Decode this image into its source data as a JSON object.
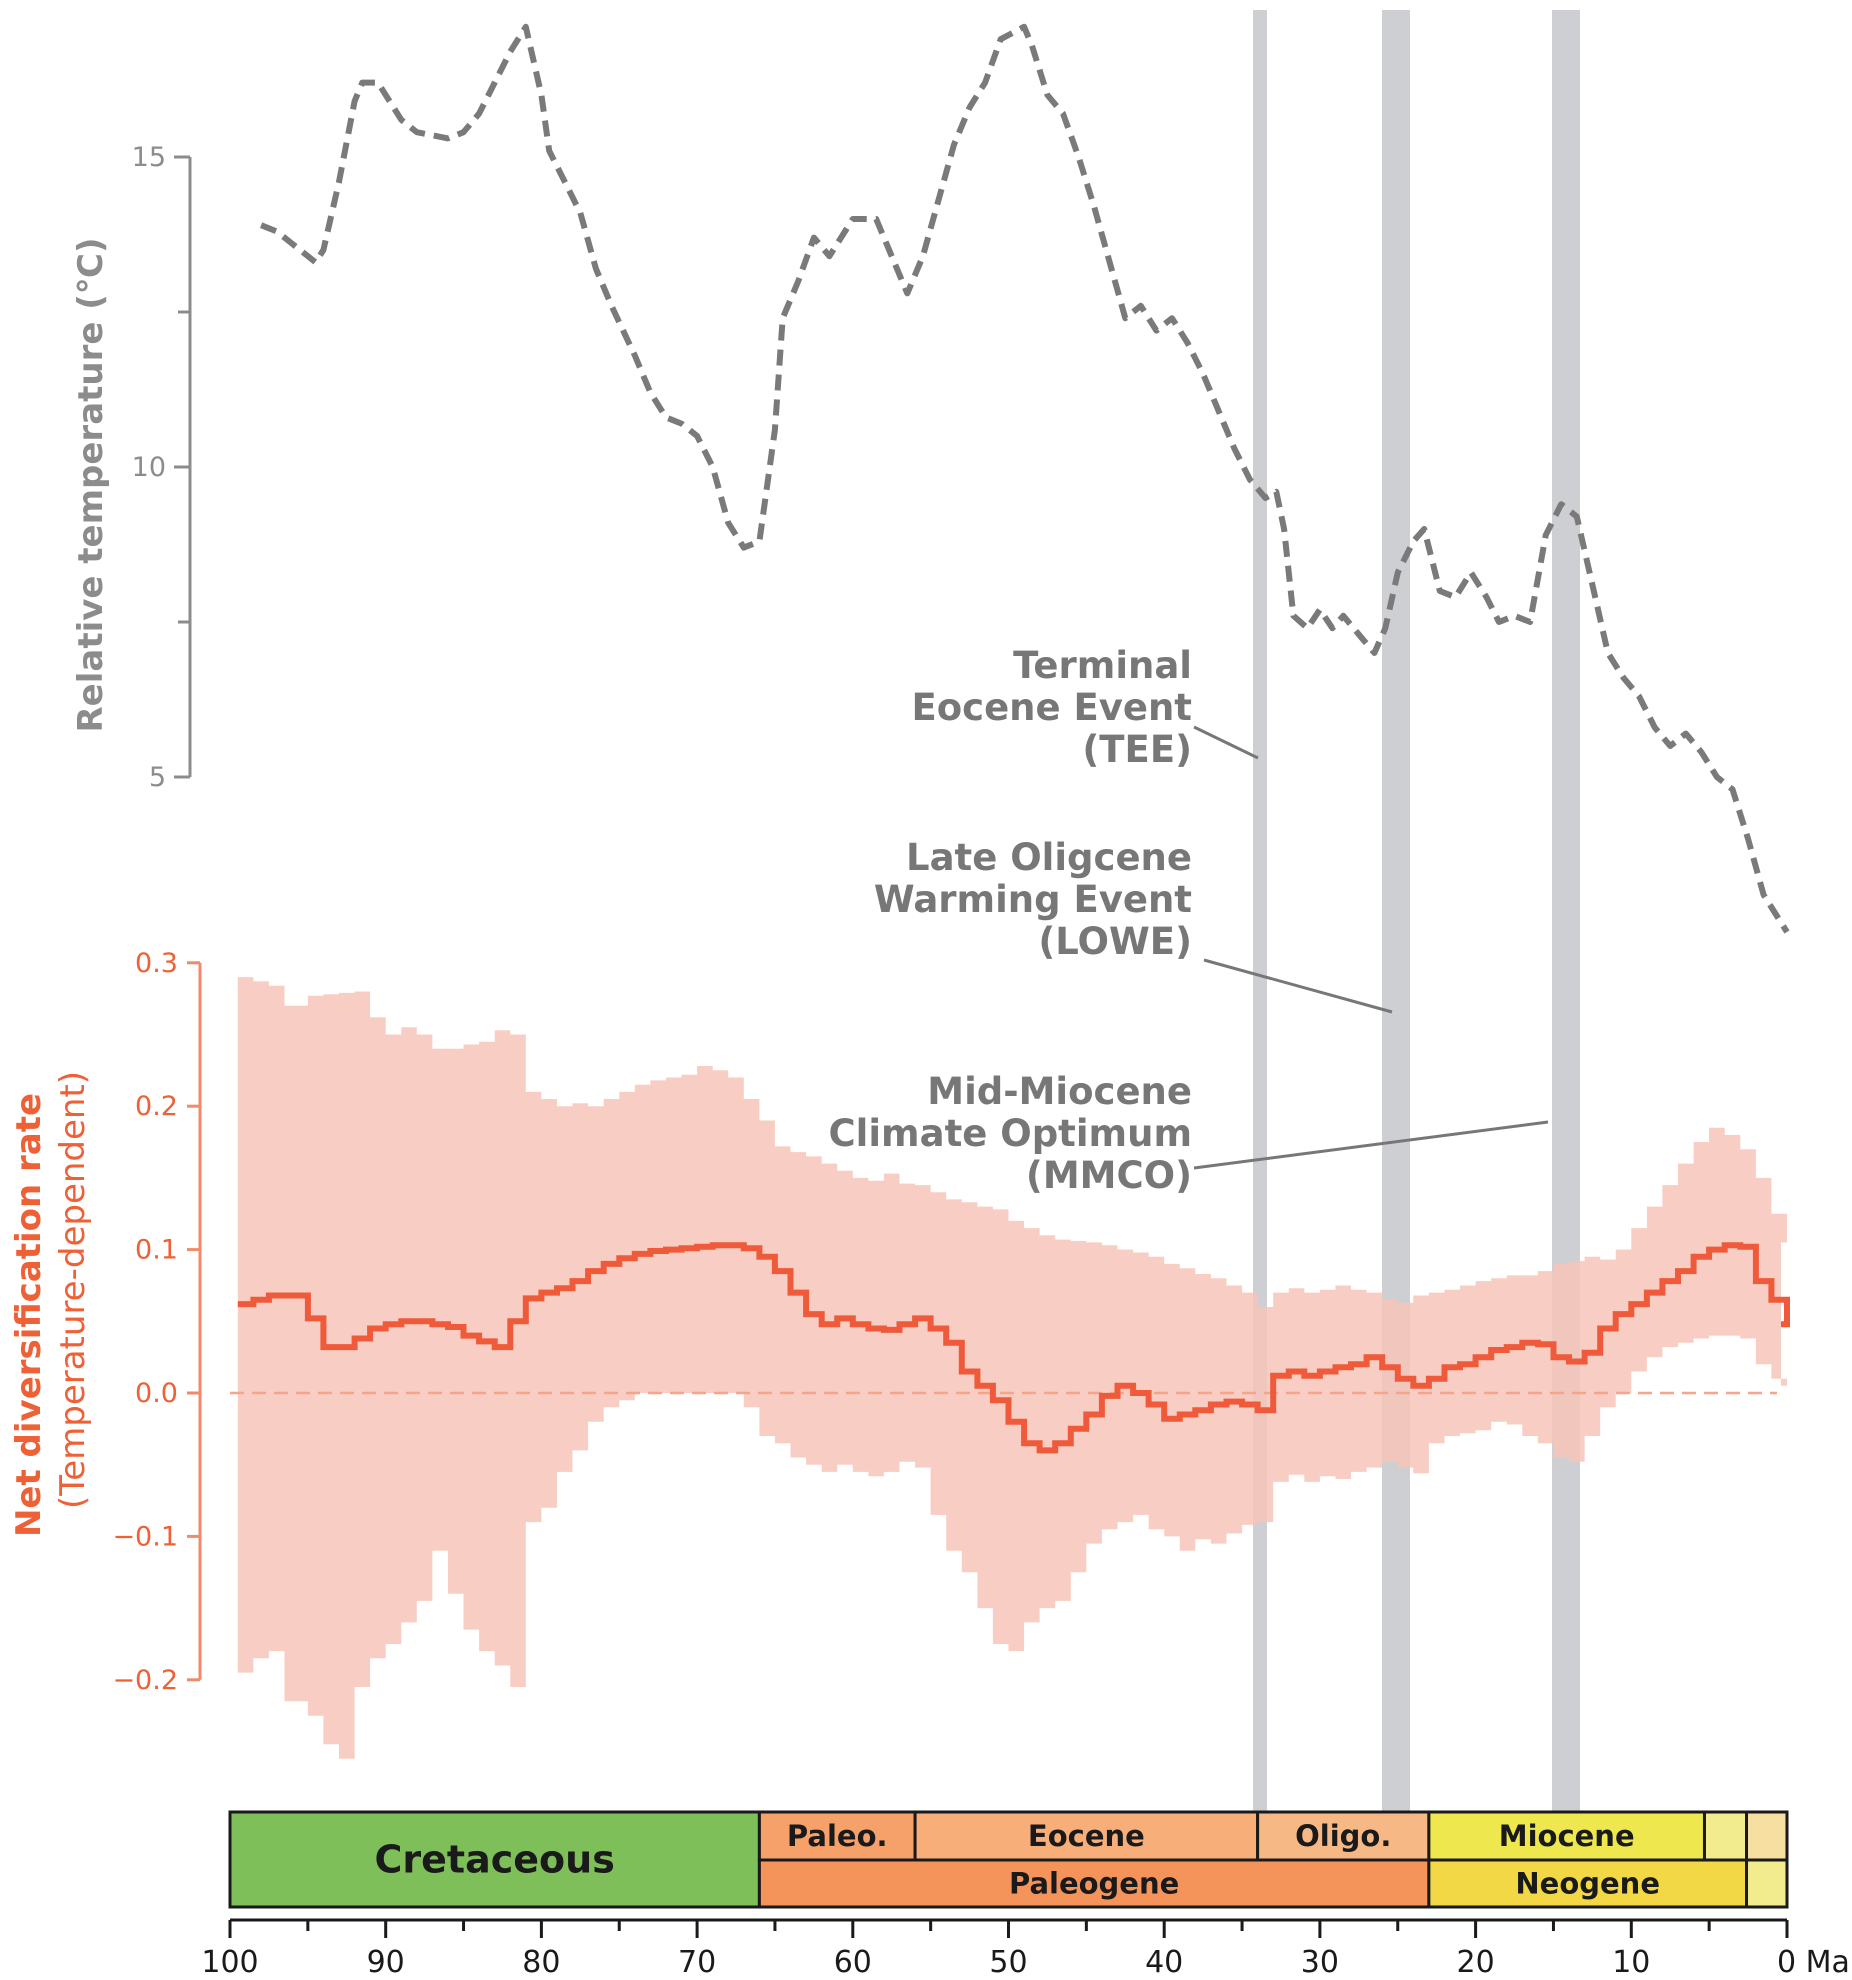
{
  "chart_data": {
    "type": "line",
    "x_unit": "Ma",
    "x_range": [
      100,
      0
    ],
    "x_ticks": [
      100,
      90,
      80,
      70,
      60,
      50,
      40,
      30,
      20,
      10,
      0
    ],
    "x_tick_labels": [
      "100",
      "90",
      "80",
      "70",
      "60",
      "50",
      "40",
      "30",
      "20",
      "10",
      "0 Ma"
    ],
    "temperature": {
      "ylabel": "Relative  temperature (℃)",
      "y_ticks": [
        15,
        10,
        5
      ],
      "y_tick_labels": [
        "15",
        "10",
        "5"
      ],
      "y_range": [
        5,
        15
      ],
      "color": "#7a7a7a",
      "style": "dashed",
      "series": [
        [
          98,
          13.9
        ],
        [
          97,
          13.8
        ],
        [
          96,
          13.6
        ],
        [
          95,
          13.4
        ],
        [
          94.5,
          13.3
        ],
        [
          94,
          13.5
        ],
        [
          93,
          14.6
        ],
        [
          92,
          15.9
        ],
        [
          91.5,
          16.2
        ],
        [
          90.5,
          16.2
        ],
        [
          90,
          16
        ],
        [
          89,
          15.6
        ],
        [
          88,
          15.4
        ],
        [
          86,
          15.3
        ],
        [
          85,
          15.4
        ],
        [
          84,
          15.7
        ],
        [
          83,
          16.2
        ],
        [
          82,
          16.7
        ],
        [
          81,
          17.1
        ],
        [
          80,
          16
        ],
        [
          79.5,
          15.1
        ],
        [
          78.5,
          14.6
        ],
        [
          77.5,
          14.1
        ],
        [
          76.5,
          13.2
        ],
        [
          75.5,
          12.6
        ],
        [
          74,
          11.8
        ],
        [
          73,
          11.2
        ],
        [
          72,
          10.8
        ],
        [
          71,
          10.7
        ],
        [
          70,
          10.5
        ],
        [
          69,
          10
        ],
        [
          68,
          9.1
        ],
        [
          67,
          8.7
        ],
        [
          66,
          8.8
        ],
        [
          65,
          10.6
        ],
        [
          64.5,
          12.4
        ],
        [
          63.5,
          13
        ],
        [
          62.5,
          13.7
        ],
        [
          61.5,
          13.4
        ],
        [
          60,
          14
        ],
        [
          58.5,
          14
        ],
        [
          57.5,
          13.4
        ],
        [
          56.5,
          12.8
        ],
        [
          55.5,
          13.4
        ],
        [
          54.5,
          14.3
        ],
        [
          53.5,
          15.2
        ],
        [
          52.5,
          15.8
        ],
        [
          51.5,
          16.2
        ],
        [
          50.5,
          16.9
        ],
        [
          49,
          17.1
        ],
        [
          48.5,
          16.8
        ],
        [
          47.5,
          16
        ],
        [
          46.5,
          15.7
        ],
        [
          45.5,
          15
        ],
        [
          44.5,
          14.2
        ],
        [
          43.5,
          13.3
        ],
        [
          42.5,
          12.4
        ],
        [
          41.5,
          12.6
        ],
        [
          40.5,
          12.2
        ],
        [
          39.5,
          12.4
        ],
        [
          38.5,
          12
        ],
        [
          37.5,
          11.5
        ],
        [
          36.5,
          10.9
        ],
        [
          35.5,
          10.3
        ],
        [
          34.5,
          9.8
        ],
        [
          33.5,
          9.5
        ],
        [
          32.8,
          9.6
        ],
        [
          32.3,
          9
        ],
        [
          31.7,
          7.6
        ],
        [
          30.8,
          7.4
        ],
        [
          30,
          7.7
        ],
        [
          29.2,
          7.4
        ],
        [
          28.5,
          7.6
        ],
        [
          27.5,
          7.3
        ],
        [
          26.5,
          7
        ],
        [
          25.8,
          7.4
        ],
        [
          25,
          8.3
        ],
        [
          24,
          8.8
        ],
        [
          23.3,
          9
        ],
        [
          22.8,
          8.5
        ],
        [
          22.3,
          8
        ],
        [
          21.3,
          7.9
        ],
        [
          20.3,
          8.3
        ],
        [
          19.3,
          7.9
        ],
        [
          18.5,
          7.5
        ],
        [
          17.5,
          7.6
        ],
        [
          16.5,
          7.5
        ],
        [
          15.5,
          8.9
        ],
        [
          14.5,
          9.4
        ],
        [
          13.5,
          9.2
        ],
        [
          12.5,
          8.1
        ],
        [
          11.5,
          7
        ],
        [
          10.5,
          6.6
        ],
        [
          9.5,
          6.3
        ],
        [
          8.5,
          5.8
        ],
        [
          7.5,
          5.5
        ],
        [
          6.5,
          5.7
        ],
        [
          5.5,
          5.4
        ],
        [
          4.5,
          5
        ],
        [
          3.5,
          4.8
        ],
        [
          2.5,
          4
        ],
        [
          1.5,
          3.1
        ],
        [
          0,
          2.5
        ]
      ]
    },
    "diversification": {
      "ylabel_line1": "Net diversification rate",
      "ylabel_line2": "(Temperature-dependent)",
      "y_ticks": [
        0.3,
        0.2,
        0.1,
        0.0,
        -0.1,
        -0.2
      ],
      "y_tick_labels": [
        "0.3",
        "0.2",
        "0.1",
        "0.0",
        "−0.1",
        "−0.2"
      ],
      "y_range": [
        -0.2,
        0.3
      ],
      "color": "#ee5a3a",
      "band_color": "#f7c4b8",
      "zero_line": 0.0,
      "step_x": [
        99.5,
        98.5,
        97.5,
        96.5,
        95,
        94,
        93,
        92,
        91,
        90,
        89,
        88,
        87,
        86,
        85,
        84,
        83,
        82,
        81,
        80,
        79,
        78,
        77,
        76,
        75,
        74,
        73,
        72,
        71,
        70,
        69,
        68,
        67,
        66,
        65,
        64,
        63,
        62,
        61,
        60,
        59,
        58,
        57,
        56,
        55,
        54,
        53,
        52,
        51,
        50,
        49,
        48,
        47,
        46,
        45,
        44,
        43,
        42,
        41,
        40,
        39,
        38,
        37,
        36,
        35,
        34,
        33,
        32,
        31,
        30,
        29,
        28,
        27,
        26,
        25,
        24,
        23,
        22,
        21,
        20,
        19,
        18,
        17,
        16,
        15,
        14,
        13,
        12,
        11,
        10,
        9,
        8,
        7,
        6,
        5,
        4,
        3,
        2,
        1,
        0
      ],
      "mean": [
        0.062,
        0.065,
        0.068,
        0.068,
        0.052,
        0.032,
        0.032,
        0.038,
        0.045,
        0.048,
        0.05,
        0.05,
        0.048,
        0.046,
        0.04,
        0.036,
        0.032,
        0.05,
        0.066,
        0.07,
        0.073,
        0.078,
        0.085,
        0.09,
        0.094,
        0.097,
        0.099,
        0.1,
        0.101,
        0.102,
        0.103,
        0.103,
        0.101,
        0.095,
        0.085,
        0.07,
        0.055,
        0.048,
        0.052,
        0.048,
        0.045,
        0.044,
        0.048,
        0.052,
        0.045,
        0.035,
        0.015,
        0.005,
        -0.005,
        -0.02,
        -0.035,
        -0.04,
        -0.035,
        -0.025,
        -0.015,
        -0.002,
        0.005,
        0.0,
        -0.008,
        -0.018,
        -0.015,
        -0.012,
        -0.008,
        -0.006,
        -0.008,
        -0.012,
        0.012,
        0.015,
        0.012,
        0.015,
        0.018,
        0.02,
        0.025,
        0.018,
        0.01,
        0.005,
        0.01,
        0.018,
        0.02,
        0.025,
        0.03,
        0.032,
        0.035,
        0.034,
        0.025,
        0.022,
        0.028,
        0.045,
        0.055,
        0.062,
        0.07,
        0.078,
        0.085,
        0.095,
        0.1,
        0.103,
        0.102,
        0.078,
        0.065,
        0.048
      ],
      "upper": [
        0.29,
        0.287,
        0.284,
        0.27,
        0.277,
        0.278,
        0.279,
        0.28,
        0.262,
        0.25,
        0.255,
        0.25,
        0.24,
        0.24,
        0.243,
        0.245,
        0.253,
        0.25,
        0.21,
        0.205,
        0.2,
        0.202,
        0.2,
        0.205,
        0.21,
        0.215,
        0.218,
        0.22,
        0.222,
        0.228,
        0.225,
        0.22,
        0.205,
        0.19,
        0.172,
        0.168,
        0.165,
        0.16,
        0.155,
        0.15,
        0.148,
        0.153,
        0.146,
        0.145,
        0.14,
        0.135,
        0.133,
        0.13,
        0.128,
        0.12,
        0.115,
        0.11,
        0.107,
        0.106,
        0.105,
        0.103,
        0.1,
        0.098,
        0.095,
        0.09,
        0.087,
        0.083,
        0.08,
        0.075,
        0.07,
        0.06,
        0.07,
        0.073,
        0.07,
        0.072,
        0.075,
        0.072,
        0.07,
        0.065,
        0.063,
        0.068,
        0.07,
        0.072,
        0.075,
        0.078,
        0.08,
        0.082,
        0.082,
        0.085,
        0.09,
        0.092,
        0.095,
        0.093,
        0.1,
        0.115,
        0.13,
        0.145,
        0.16,
        0.175,
        0.185,
        0.18,
        0.17,
        0.15,
        0.125,
        0.105
      ],
      "lower": [
        -0.195,
        -0.185,
        -0.18,
        -0.215,
        -0.225,
        -0.245,
        -0.255,
        -0.205,
        -0.185,
        -0.175,
        -0.16,
        -0.145,
        -0.11,
        -0.14,
        -0.165,
        -0.18,
        -0.19,
        -0.205,
        -0.09,
        -0.08,
        -0.055,
        -0.04,
        -0.02,
        -0.01,
        -0.005,
        0.0,
        0.0,
        0.0,
        0.0,
        0.0,
        0.0,
        0.0,
        -0.01,
        -0.03,
        -0.035,
        -0.045,
        -0.05,
        -0.055,
        -0.05,
        -0.055,
        -0.058,
        -0.055,
        -0.048,
        -0.052,
        -0.085,
        -0.11,
        -0.125,
        -0.15,
        -0.175,
        -0.18,
        -0.16,
        -0.15,
        -0.145,
        -0.125,
        -0.105,
        -0.095,
        -0.09,
        -0.085,
        -0.095,
        -0.1,
        -0.11,
        -0.102,
        -0.105,
        -0.098,
        -0.092,
        -0.09,
        -0.062,
        -0.057,
        -0.062,
        -0.058,
        -0.06,
        -0.055,
        -0.052,
        -0.048,
        -0.052,
        -0.056,
        -0.035,
        -0.03,
        -0.028,
        -0.026,
        -0.02,
        -0.022,
        -0.03,
        -0.035,
        -0.045,
        -0.048,
        -0.03,
        -0.01,
        0.0,
        0.015,
        0.025,
        0.032,
        0.035,
        0.038,
        0.04,
        0.04,
        0.038,
        0.02,
        0.01,
        0.005
      ]
    },
    "events": [
      {
        "name": "TEE",
        "label_lines": [
          "Terminal",
          "Eocene Event",
          "(TEE)"
        ],
        "age": 33.5
      },
      {
        "name": "LOWE",
        "label_lines": [
          "Late Oligcene ",
          "Warming Event",
          "(LOWE)"
        ],
        "age": 25.0
      },
      {
        "name": "MMCO",
        "label_lines": [
          "Mid-Miocene",
          "Climate Optimum",
          "(MMCO)"
        ],
        "age": 14.0
      }
    ],
    "timescale": {
      "periods": [
        {
          "label": "Cretaceous",
          "start": 100,
          "end": 66,
          "color": "#7fbf5a"
        },
        {
          "label": "Paleogene",
          "start": 66,
          "end": 23,
          "color": "#f5945a"
        },
        {
          "label": "Neogene",
          "start": 23,
          "end": 2.6,
          "color": "#f2d844"
        },
        {
          "label": "",
          "start": 2.6,
          "end": 0,
          "color": "#f2ec8f"
        }
      ],
      "epochs": [
        {
          "label": "Paleo.",
          "start": 66,
          "end": 56,
          "color": "#f6a06a"
        },
        {
          "label": "Eocene",
          "start": 56,
          "end": 34,
          "color": "#f7ae78"
        },
        {
          "label": "Oligo.",
          "start": 34,
          "end": 23,
          "color": "#f6b985"
        },
        {
          "label": "Miocene",
          "start": 23,
          "end": 5.3,
          "color": "#eee84e"
        },
        {
          "label": "",
          "start": 5.3,
          "end": 2.6,
          "color": "#f2ec8f"
        },
        {
          "label": "",
          "start": 2.6,
          "end": 0,
          "color": "#f6dfa0"
        }
      ]
    }
  }
}
